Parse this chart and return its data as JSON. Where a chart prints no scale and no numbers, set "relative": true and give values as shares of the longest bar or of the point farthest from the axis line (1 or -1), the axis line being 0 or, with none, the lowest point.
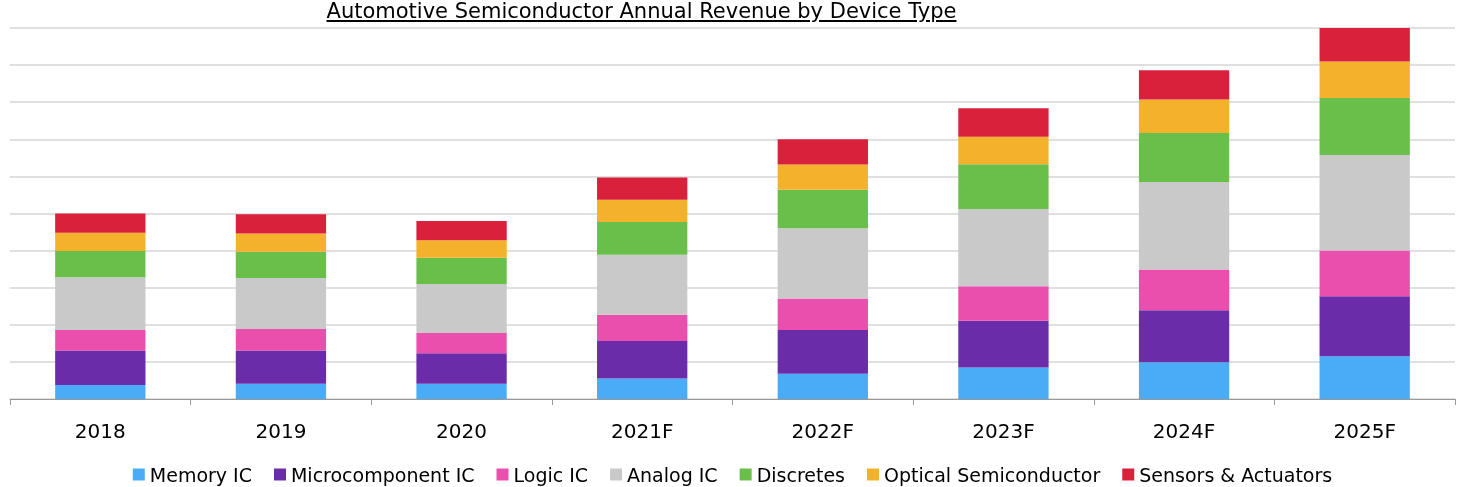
{
  "chart_data": {
    "type": "bar",
    "title": "Automotive Semiconductor Annual Revenue by Device Type",
    "stacked": true,
    "relative": true,
    "grid": "y",
    "legend": "bottom",
    "categories": [
      "2018",
      "2019",
      "2020",
      "2021F",
      "2022F",
      "2023F",
      "2024F",
      "2025F"
    ],
    "series": [
      {
        "name": "Memory IC",
        "color": "#4aabf6",
        "values": [
          0.038,
          0.041,
          0.041,
          0.055,
          0.068,
          0.085,
          0.099,
          0.115
        ]
      },
      {
        "name": "Microcomponent IC",
        "color": "#6a2ca8",
        "values": [
          0.093,
          0.09,
          0.082,
          0.101,
          0.118,
          0.126,
          0.14,
          0.162
        ]
      },
      {
        "name": "Logic IC",
        "color": "#ea4fad",
        "values": [
          0.055,
          0.058,
          0.055,
          0.071,
          0.085,
          0.093,
          0.11,
          0.123
        ]
      },
      {
        "name": "Analog IC",
        "color": "#c9c9c9",
        "values": [
          0.142,
          0.137,
          0.132,
          0.162,
          0.189,
          0.208,
          0.236,
          0.258
        ]
      },
      {
        "name": "Discretes",
        "color": "#6abf4b",
        "values": [
          0.071,
          0.071,
          0.071,
          0.088,
          0.104,
          0.121,
          0.132,
          0.153
        ]
      },
      {
        "name": "Optical Semiconductor",
        "color": "#f4b12c",
        "values": [
          0.049,
          0.049,
          0.047,
          0.06,
          0.068,
          0.074,
          0.09,
          0.099
        ]
      },
      {
        "name": "Sensors & Actuators",
        "color": "#d9213b",
        "values": [
          0.052,
          0.052,
          0.052,
          0.06,
          0.068,
          0.077,
          0.079,
          0.09
        ]
      }
    ]
  }
}
